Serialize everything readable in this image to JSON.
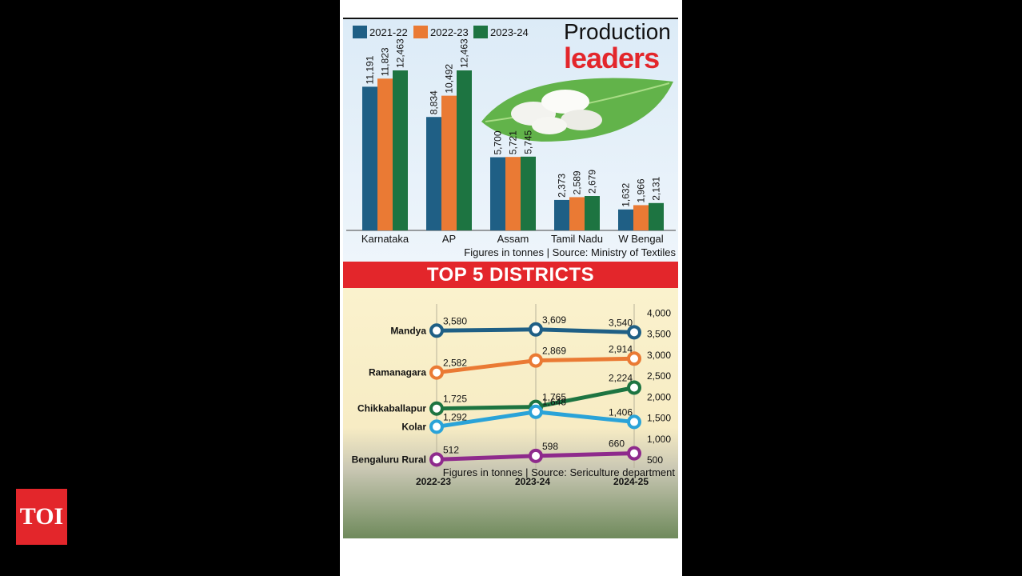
{
  "chart_data": [
    {
      "type": "bar",
      "title": "Production leaders",
      "title_line1": "Production",
      "title_line2": "leaders",
      "categories": [
        "Karnataka",
        "AP",
        "Assam",
        "Tamil Nadu",
        "W Bengal"
      ],
      "series": [
        {
          "name": "2021-22",
          "color": "#1f5f85",
          "values": [
            11191,
            8834,
            5700,
            2373,
            1632
          ],
          "labels": [
            "11,191",
            "8,834",
            "5,700",
            "2,373",
            "1,632"
          ]
        },
        {
          "name": "2022-23",
          "color": "#ea7a34",
          "values": [
            11823,
            10492,
            5721,
            2589,
            1966
          ],
          "labels": [
            "11,823",
            "10,492",
            "5,721",
            "2,589",
            "1,966"
          ]
        },
        {
          "name": "2023-24",
          "color": "#1d7441",
          "values": [
            12463,
            12463,
            5745,
            2679,
            2131
          ],
          "labels": [
            "12,463",
            "12,463",
            "5,745",
            "2,679",
            "2,131"
          ]
        }
      ],
      "ylim": [
        0,
        14000
      ],
      "footnote": "Figures in tonnes | Source: Ministry of Textiles"
    },
    {
      "type": "line",
      "title": "TOP 5 DISTRICTS",
      "x": [
        "2022-23",
        "2023-24",
        "2024-25"
      ],
      "series": [
        {
          "name": "Mandya",
          "color": "#1f5f85",
          "values": [
            3580,
            3609,
            3540
          ],
          "labels": [
            "3,580",
            "3,609",
            "3,540"
          ]
        },
        {
          "name": "Ramanagara",
          "color": "#ea7a34",
          "values": [
            2582,
            2869,
            2914
          ],
          "labels": [
            "2,582",
            "2,869",
            "2,914"
          ]
        },
        {
          "name": "Chikkaballapur",
          "color": "#1d7441",
          "values": [
            1725,
            1765,
            2224
          ],
          "labels": [
            "1,725",
            "1,765",
            "2,224"
          ]
        },
        {
          "name": "Kolar",
          "color": "#2aa3d8",
          "values": [
            1292,
            1648,
            1406
          ],
          "labels": [
            "1,292",
            "1,648",
            "1,406"
          ]
        },
        {
          "name": "Bengaluru Rural",
          "color": "#8e2a8c",
          "values": [
            512,
            598,
            660
          ],
          "labels": [
            "512",
            "598",
            "660"
          ]
        }
      ],
      "yticks": [
        "4,000",
        "3,500",
        "3,000",
        "2,500",
        "2,000",
        "1,500",
        "1,000",
        "500"
      ],
      "ylim": [
        0,
        4000
      ],
      "footnote": "Figures in tonnes | Source: Sericulture department"
    }
  ],
  "watermark": "TOI"
}
